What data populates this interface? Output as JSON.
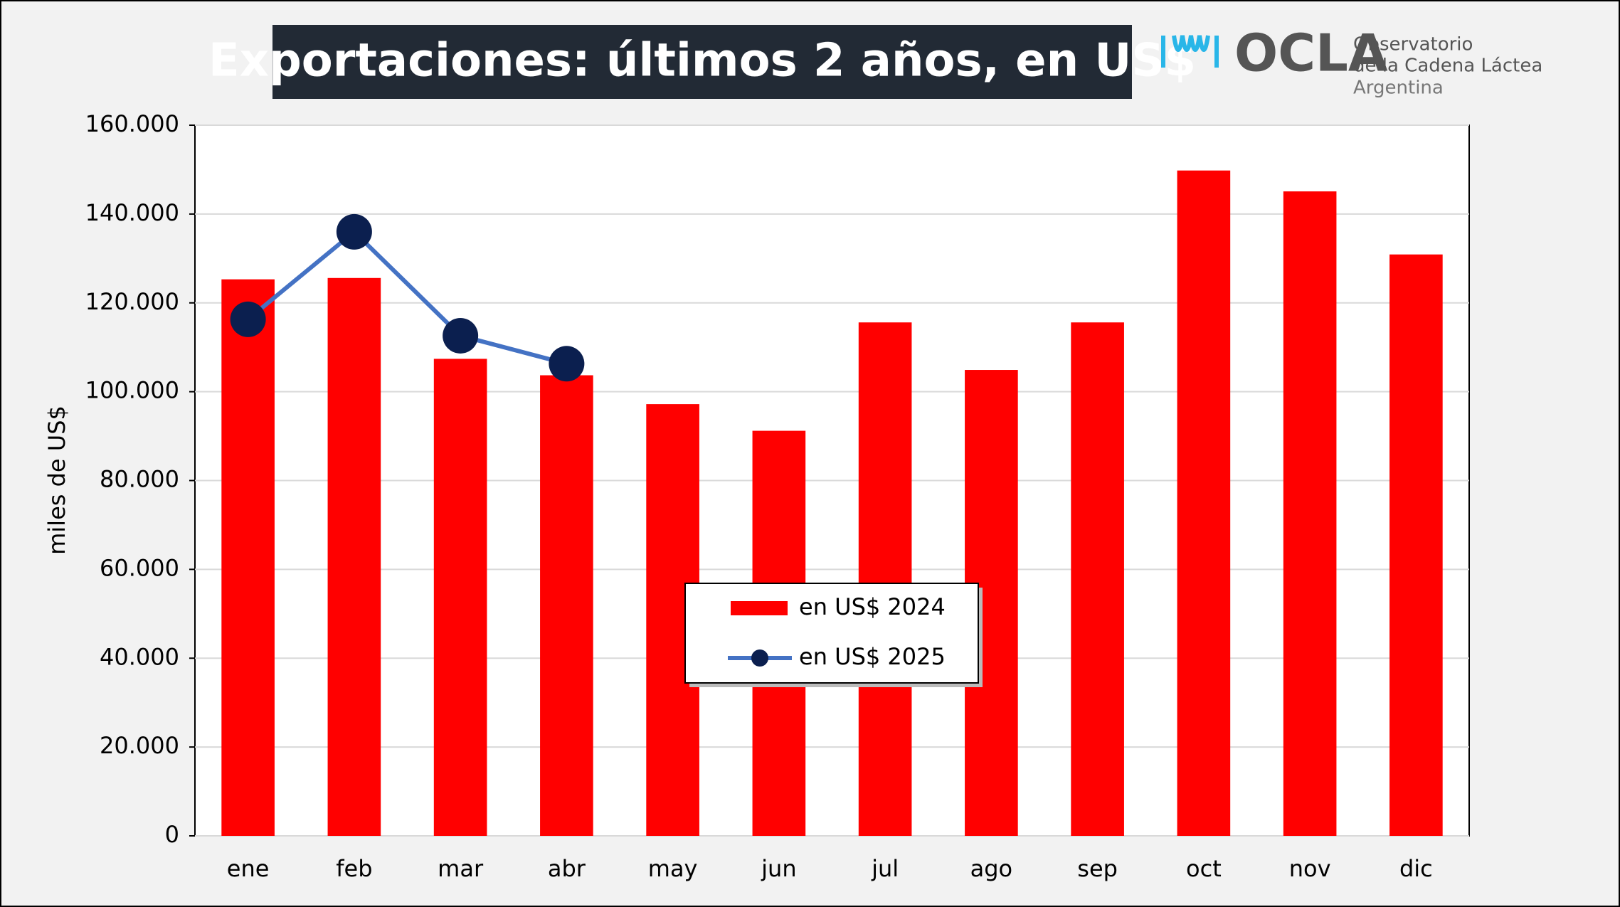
{
  "chart_data": {
    "type": "bar",
    "title": "Exportaciones: últimos 2 años, en US$",
    "y_label": "miles de US$",
    "categories": [
      "ene",
      "feb",
      "mar",
      "abr",
      "may",
      "jun",
      "jul",
      "ago",
      "sep",
      "oct",
      "nov",
      "dic"
    ],
    "series": [
      {
        "name": "en US$ 2024",
        "type": "bar",
        "color": "#ff0000",
        "values": [
          125300,
          125600,
          107400,
          103700,
          97200,
          91200,
          115600,
          104900,
          115600,
          149800,
          145100,
          130900
        ]
      },
      {
        "name": "en US$ 2025",
        "type": "line",
        "color": "#4472c4",
        "marker_color": "#0b1f4f",
        "values": [
          116300,
          136000,
          112600,
          106300,
          null,
          null,
          null,
          null,
          null,
          null,
          null,
          null
        ]
      }
    ],
    "ylim": [
      0,
      160000
    ],
    "yticks": [
      0,
      {
        "value": 20000,
        "label": "20.000"
      },
      {
        "value": 40000,
        "label": "40.000"
      },
      {
        "value": 60000,
        "label": "60.000"
      },
      {
        "value": 80000,
        "label": "80.000"
      },
      {
        "value": 100000,
        "label": "100.000"
      },
      {
        "value": 120000,
        "label": "120.000"
      },
      {
        "value": 140000,
        "label": "140.000"
      },
      {
        "value": 160000,
        "label": "160.000"
      }
    ],
    "grid": true
  },
  "logo": {
    "name": "OCLA",
    "line1": "Observatorio",
    "line2": "de la Cadena Láctea",
    "line3": "Argentina"
  }
}
